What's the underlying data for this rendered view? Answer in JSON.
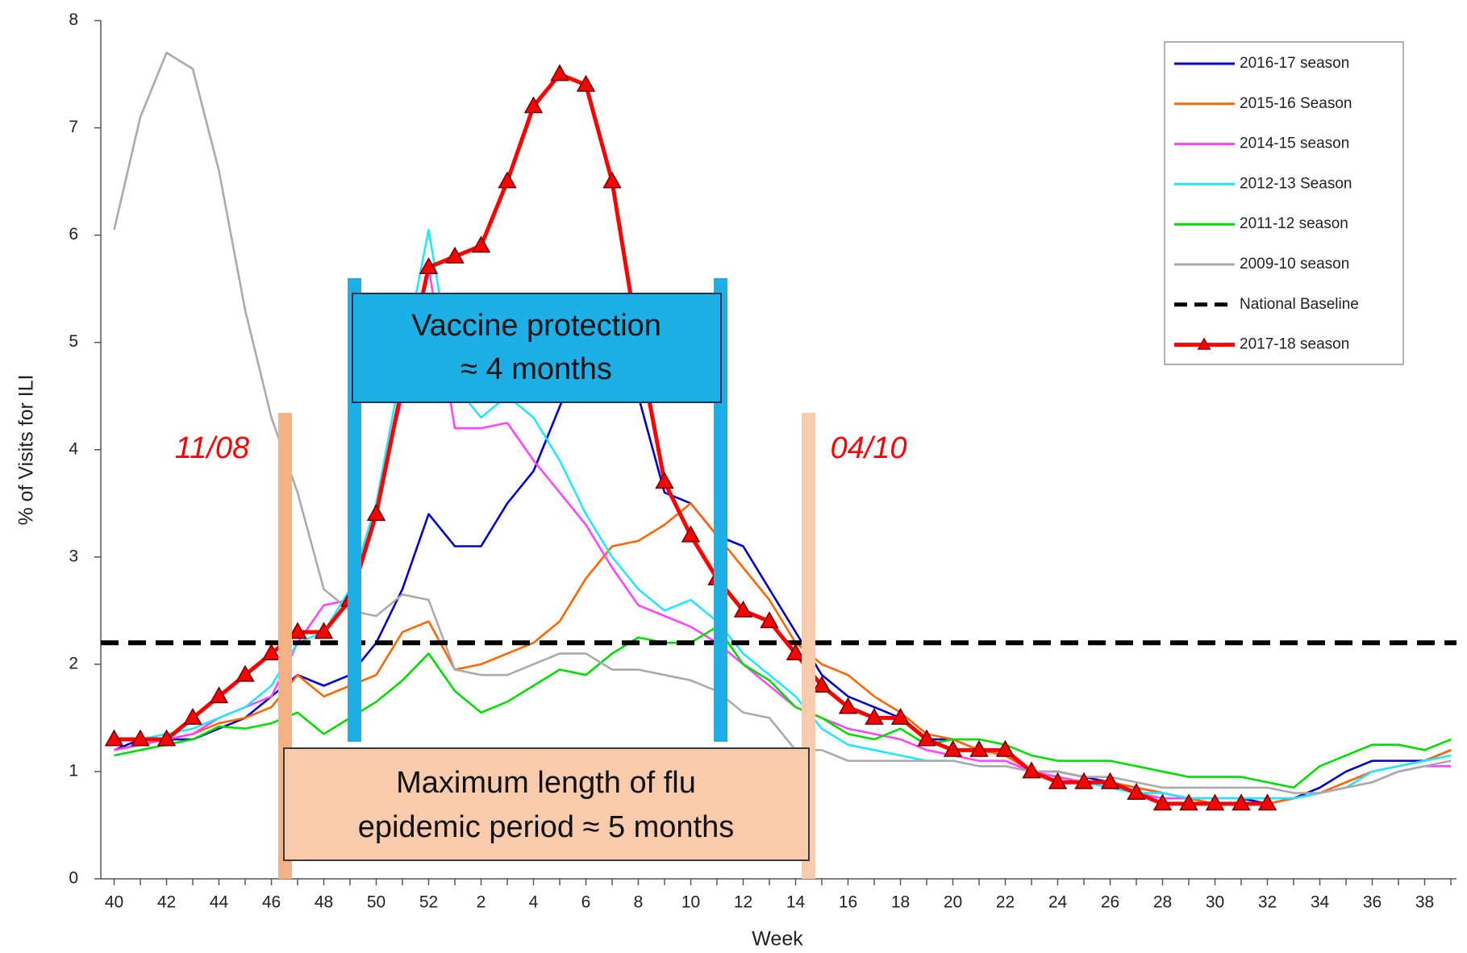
{
  "chart_data": {
    "type": "line",
    "xlabel": "Week",
    "ylabel": "% of Visits for ILI",
    "categories": [
      "40",
      null,
      "42",
      null,
      "44",
      null,
      "46",
      null,
      "48",
      null,
      "50",
      null,
      "52",
      null,
      "2",
      null,
      "4",
      null,
      "6",
      null,
      "8",
      null,
      "10",
      null,
      "12",
      null,
      "14",
      null,
      "16",
      null,
      "18",
      null,
      "20",
      null,
      "22",
      null,
      "24",
      null,
      "26",
      null,
      "28",
      null,
      "30",
      null,
      "32",
      null,
      "34",
      null,
      "36",
      null,
      "38",
      null
    ],
    "ylim": [
      0,
      8
    ],
    "yticks": [
      0,
      1,
      2,
      3,
      4,
      5,
      6,
      7,
      8
    ],
    "series": [
      {
        "name": "2016-17 season",
        "color": "#0000cc",
        "values": [
          1.2,
          1.3,
          1.3,
          1.3,
          1.4,
          1.5,
          1.7,
          1.9,
          1.8,
          1.9,
          2.2,
          2.7,
          3.4,
          3.1,
          3.1,
          3.5,
          3.8,
          4.4,
          5.0,
          5.2,
          4.5,
          3.6,
          3.5,
          3.2,
          3.1,
          2.7,
          2.3,
          1.9,
          1.7,
          1.6,
          1.5,
          1.3,
          1.3,
          1.2,
          1.2,
          1.0,
          1.0,
          0.95,
          0.9,
          0.85,
          0.8,
          0.75,
          0.75,
          0.75,
          0.7,
          0.75,
          0.85,
          1.0,
          1.1,
          1.1,
          1.1,
          1.2
        ]
      },
      {
        "name": "2015-16 Season",
        "color": "#ff6600",
        "values": [
          1.2,
          1.25,
          1.3,
          1.35,
          1.45,
          1.5,
          1.6,
          1.9,
          1.7,
          1.8,
          1.9,
          2.3,
          2.4,
          1.95,
          2.0,
          2.1,
          2.2,
          2.4,
          2.8,
          3.1,
          3.15,
          3.3,
          3.5,
          3.2,
          2.9,
          2.6,
          2.2,
          2.0,
          1.9,
          1.7,
          1.55,
          1.35,
          1.3,
          1.2,
          1.15,
          1.0,
          0.95,
          0.9,
          0.9,
          0.85,
          0.8,
          0.75,
          0.7,
          0.7,
          0.7,
          0.75,
          0.8,
          0.9,
          1.0,
          1.05,
          1.1,
          1.2
        ]
      },
      {
        "name": "2014-15 season",
        "color": "#ff44ff",
        "values": [
          1.2,
          1.25,
          1.3,
          1.35,
          1.5,
          1.6,
          1.7,
          2.2,
          2.55,
          2.6,
          3.5,
          4.5,
          5.7,
          4.2,
          4.2,
          4.25,
          3.9,
          3.6,
          3.3,
          2.9,
          2.55,
          2.45,
          2.35,
          2.2,
          2.0,
          1.8,
          1.6,
          1.5,
          1.4,
          1.35,
          1.3,
          1.2,
          1.15,
          1.1,
          1.1,
          1.0,
          0.95,
          0.9,
          0.85,
          0.8,
          0.75,
          0.75,
          0.75,
          0.75,
          0.75,
          0.75,
          0.8,
          0.85,
          0.9,
          1.0,
          1.05,
          1.05
        ]
      },
      {
        "name": "2012-13 Season",
        "color": "#22e6ff",
        "values": [
          1.3,
          1.3,
          1.35,
          1.4,
          1.5,
          1.6,
          1.8,
          2.2,
          2.3,
          2.7,
          3.5,
          4.8,
          6.05,
          4.6,
          4.3,
          4.5,
          4.3,
          3.9,
          3.4,
          3.0,
          2.7,
          2.5,
          2.6,
          2.4,
          2.1,
          1.9,
          1.7,
          1.4,
          1.25,
          1.2,
          1.15,
          1.1,
          1.1,
          1.05,
          1.05,
          1.0,
          0.9,
          0.9,
          0.85,
          0.8,
          0.8,
          0.75,
          0.75,
          0.75,
          0.75,
          0.75,
          0.8,
          0.85,
          1.0,
          1.05,
          1.1,
          1.15
        ]
      },
      {
        "name": "2011-12 season",
        "color": "#00dd00",
        "values": [
          1.15,
          1.2,
          1.25,
          1.3,
          1.42,
          1.4,
          1.45,
          1.55,
          1.35,
          1.5,
          1.65,
          1.85,
          2.1,
          1.75,
          1.55,
          1.65,
          1.8,
          1.95,
          1.9,
          2.1,
          2.25,
          2.2,
          2.2,
          2.35,
          2.0,
          1.85,
          1.6,
          1.5,
          1.35,
          1.3,
          1.4,
          1.25,
          1.3,
          1.3,
          1.25,
          1.15,
          1.1,
          1.1,
          1.1,
          1.05,
          1.0,
          0.95,
          0.95,
          0.95,
          0.9,
          0.85,
          1.05,
          1.15,
          1.25,
          1.25,
          1.2,
          1.3
        ]
      },
      {
        "name": "2009-10 season",
        "color": "#aaaaaa",
        "values": [
          6.05,
          7.1,
          7.7,
          7.55,
          6.6,
          5.3,
          4.3,
          3.6,
          2.7,
          2.5,
          2.45,
          2.65,
          2.6,
          1.95,
          1.9,
          1.9,
          2.0,
          2.1,
          2.1,
          1.95,
          1.95,
          1.9,
          1.85,
          1.75,
          1.55,
          1.5,
          1.2,
          1.2,
          1.1,
          1.1,
          1.1,
          1.1,
          1.1,
          1.05,
          1.05,
          1.0,
          1.0,
          0.95,
          0.95,
          0.9,
          0.85,
          0.85,
          0.85,
          0.85,
          0.85,
          0.8,
          0.8,
          0.85,
          0.9,
          1.0,
          1.05,
          1.1
        ]
      },
      {
        "name": "2017-18 season",
        "color": "#ff0000",
        "markers": true,
        "values": [
          1.3,
          1.3,
          1.3,
          1.5,
          1.7,
          1.9,
          2.1,
          2.3,
          2.3,
          2.6,
          3.4,
          4.6,
          5.7,
          5.8,
          5.9,
          6.5,
          7.2,
          7.5,
          7.4,
          6.5,
          5.0,
          3.7,
          3.2,
          2.8,
          2.5,
          2.4,
          2.1,
          1.8,
          1.6,
          1.5,
          1.5,
          1.3,
          1.2,
          1.2,
          1.2,
          1.0,
          0.9,
          0.9,
          0.9,
          0.8,
          0.7,
          0.7,
          0.7,
          0.7,
          0.7,
          null,
          null,
          null,
          null,
          null,
          null,
          null
        ]
      }
    ],
    "baseline": {
      "name": "National Baseline",
      "value": 2.2,
      "color": "#000000"
    },
    "annotations": [
      {
        "text": "11/08"
      },
      {
        "text": "04/10"
      }
    ],
    "boxes": [
      {
        "lines": [
          "Vaccine protection",
          "≈ 4 months"
        ]
      },
      {
        "lines": [
          "Maximum length of flu",
          "epidemic period ≈ 5 months"
        ]
      }
    ]
  }
}
